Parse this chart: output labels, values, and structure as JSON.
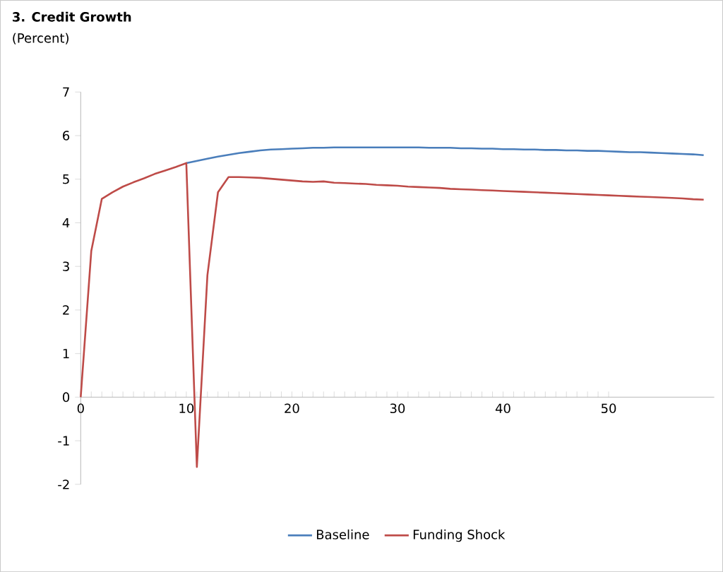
{
  "chart_data": {
    "type": "line",
    "title": "3. Credit Growth",
    "subtitle": "(Percent)",
    "x": [
      0,
      1,
      2,
      3,
      4,
      5,
      6,
      7,
      8,
      9,
      10,
      11,
      12,
      13,
      14,
      15,
      16,
      17,
      18,
      19,
      20,
      21,
      22,
      23,
      24,
      25,
      26,
      27,
      28,
      29,
      30,
      31,
      32,
      33,
      34,
      35,
      36,
      37,
      38,
      39,
      40,
      41,
      42,
      43,
      44,
      45,
      46,
      47,
      48,
      49,
      50,
      51,
      52,
      53,
      54,
      55,
      56,
      57,
      58,
      59
    ],
    "series": [
      {
        "name": "Baseline",
        "color": "#4a7ebb",
        "values": [
          null,
          null,
          null,
          null,
          null,
          null,
          null,
          null,
          null,
          null,
          5.37,
          5.42,
          5.47,
          5.52,
          5.56,
          5.6,
          5.63,
          5.66,
          5.68,
          5.69,
          5.7,
          5.71,
          5.72,
          5.72,
          5.73,
          5.73,
          5.73,
          5.73,
          5.73,
          5.73,
          5.73,
          5.73,
          5.73,
          5.72,
          5.72,
          5.72,
          5.71,
          5.71,
          5.7,
          5.7,
          5.69,
          5.69,
          5.68,
          5.68,
          5.67,
          5.67,
          5.66,
          5.66,
          5.65,
          5.65,
          5.64,
          5.63,
          5.62,
          5.62,
          5.61,
          5.6,
          5.59,
          5.58,
          5.57,
          5.55
        ]
      },
      {
        "name": "Funding Shock",
        "color": "#be4b48",
        "values": [
          0,
          3.35,
          4.55,
          4.7,
          4.83,
          4.93,
          5.02,
          5.12,
          5.2,
          5.28,
          5.37,
          -1.6,
          2.8,
          4.7,
          5.05,
          5.05,
          5.04,
          5.03,
          5.01,
          4.99,
          4.97,
          4.95,
          4.94,
          4.95,
          4.92,
          4.91,
          4.9,
          4.89,
          4.87,
          4.86,
          4.85,
          4.83,
          4.82,
          4.81,
          4.8,
          4.78,
          4.77,
          4.76,
          4.75,
          4.74,
          4.73,
          4.72,
          4.71,
          4.7,
          4.69,
          4.68,
          4.67,
          4.66,
          4.65,
          4.64,
          4.63,
          4.62,
          4.61,
          4.6,
          4.59,
          4.58,
          4.57,
          4.56,
          4.54,
          4.53
        ]
      }
    ],
    "xlim": [
      0,
      60
    ],
    "ylim": [
      -2,
      7
    ],
    "xticks": [
      0,
      10,
      20,
      30,
      40,
      50
    ],
    "yticks": [
      -2,
      -1,
      0,
      1,
      2,
      3,
      4,
      5,
      6,
      7
    ],
    "grid": false,
    "legend": "bottom",
    "line_style": "solid",
    "marker": "none"
  }
}
